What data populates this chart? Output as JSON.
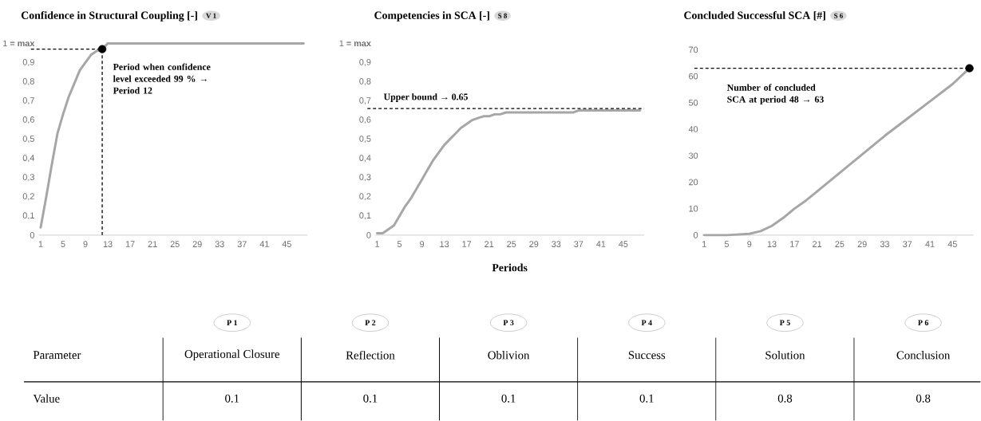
{
  "chart_data": [
    {
      "type": "line",
      "title": "Confidence in Structural Coupling [-]",
      "subtitle": "V 1",
      "series": [
        {
          "type": "line",
          "color": "#a6a6a6",
          "x": [
            1,
            2,
            3,
            4,
            5,
            6,
            7,
            8,
            9,
            10,
            11,
            12,
            13,
            48
          ],
          "values": [
            0.04,
            0.2,
            0.37,
            0.53,
            0.63,
            0.72,
            0.79,
            0.86,
            0.9,
            0.94,
            0.96,
            0.97,
            1,
            1
          ]
        },
        {
          "type": "scatter",
          "color": "#000000",
          "marker": "circle",
          "x": [
            12
          ],
          "values": [
            0.97
          ]
        }
      ],
      "xlim": [
        0.7,
        48.7
      ],
      "xticks": [
        1,
        5,
        9,
        13,
        17,
        21,
        25,
        29,
        33,
        37,
        41,
        45
      ],
      "ylim": [
        0,
        1
      ],
      "yticks": [
        0,
        {
          "value": 0.1,
          "label": "0,1"
        },
        {
          "value": 0.2,
          "label": "0,2"
        },
        {
          "value": 0.3,
          "label": "0,3"
        },
        {
          "value": 0.4,
          "label": "0,4"
        },
        {
          "value": 0.5,
          "label": "0,5"
        },
        {
          "value": 0.6,
          "label": "0,6"
        },
        {
          "value": 0.7,
          "label": "0,7"
        },
        {
          "value": 0.8,
          "label": "0,8"
        },
        {
          "value": 0.9,
          "label": "0,9"
        },
        {
          "value": 1,
          "label": "1 **= max**"
        }
      ],
      "ref_lines": [
        {
          "axis": "x",
          "value": 12,
          "color": "#000000",
          "line_style": "dashed"
        },
        {
          "axis": "y",
          "value": 0.97,
          "color": "#000000",
          "line_style": "dashed"
        }
      ],
      "annotations": [
        {
          "text": "Period when confidence level exceeded 99 % → Period 12",
          "x": 12,
          "y": 0.97
        }
      ]
    },
    {
      "type": "line",
      "title": "Competencies in SCA [-]",
      "subtitle": "S 8",
      "xlabel": "Periods",
      "series": [
        {
          "type": "line",
          "color": "#a6a6a6",
          "x": [
            1,
            2,
            3,
            4,
            5,
            6,
            7,
            8,
            9,
            10,
            11,
            12,
            13,
            14,
            15,
            16,
            17,
            18,
            19,
            20,
            21,
            22,
            23,
            24,
            25,
            36,
            37,
            48
          ],
          "values": [
            0.01,
            0.01,
            0.03,
            0.05,
            0.1,
            0.15,
            0.19,
            0.24,
            0.29,
            0.34,
            0.39,
            0.43,
            0.47,
            0.5,
            0.53,
            0.56,
            0.58,
            0.6,
            0.61,
            0.62,
            0.62,
            0.63,
            0.63,
            0.64,
            0.64,
            0.64,
            0.65,
            0.65
          ]
        }
      ],
      "xlim": [
        0.7,
        48.7
      ],
      "xticks": [
        1,
        5,
        9,
        13,
        17,
        21,
        25,
        29,
        33,
        37,
        41,
        45
      ],
      "ylim": [
        0,
        1
      ],
      "yticks": [
        0,
        {
          "value": 0.1,
          "label": "0,1"
        },
        {
          "value": 0.2,
          "label": "0,2"
        },
        {
          "value": 0.3,
          "label": "0,3"
        },
        {
          "value": 0.4,
          "label": "0,4"
        },
        {
          "value": 0.5,
          "label": "0,5"
        },
        {
          "value": 0.6,
          "label": "0,6"
        },
        {
          "value": 0.7,
          "label": "0,7"
        },
        {
          "value": 0.8,
          "label": "0,8"
        },
        {
          "value": 0.9,
          "label": "0,9"
        },
        {
          "value": 1,
          "label": "1 **= max**"
        }
      ],
      "ref_lines": [
        {
          "axis": "y",
          "value": 0.66,
          "label": "Upper bound → 0.65",
          "color": "#000000",
          "line_style": "dashed"
        }
      ]
    },
    {
      "type": "line",
      "title": "Concluded Successful SCA [#]",
      "subtitle": "S 6",
      "series": [
        {
          "type": "line",
          "color": "#a6a6a6",
          "x": [
            1,
            5,
            9,
            11,
            13,
            15,
            17,
            19,
            21,
            25,
            29,
            33,
            37,
            41,
            45,
            48
          ],
          "values": [
            0,
            0,
            0.5,
            1.5,
            3.5,
            6.5,
            10,
            13,
            16.5,
            23.5,
            30.5,
            37.5,
            44,
            50.5,
            57,
            63
          ]
        },
        {
          "type": "scatter",
          "color": "#000000",
          "marker": "circle",
          "x": [
            48
          ],
          "values": [
            63
          ]
        }
      ],
      "xlim": [
        0.7,
        48.7
      ],
      "xticks": [
        1,
        5,
        9,
        13,
        17,
        21,
        25,
        29,
        33,
        37,
        41,
        45
      ],
      "ylim": [
        0,
        70
      ],
      "yticks": [
        0,
        10,
        20,
        30,
        40,
        50,
        60,
        70
      ],
      "ref_lines": [
        {
          "axis": "y",
          "value": 63,
          "color": "#000000",
          "line_style": "dashed"
        }
      ],
      "annotations": [
        "Number of concluded SCA at period 48 → 63"
      ]
    },
    {
      "type": "other",
      "y_categories": [
        "Parameter",
        "Value"
      ],
      "categories": [
        "Operational Closure",
        "Reflection",
        "Oblivion",
        "Success",
        "Solution",
        "Conclusion"
      ],
      "values": [
        0.1,
        0.1,
        0.1,
        0.1,
        0.8,
        0.8
      ],
      "data_labels": true,
      "annotations": [
        "P 1",
        "P 2",
        "P 3",
        "P 4",
        "P 5",
        "P 6"
      ]
    }
  ]
}
